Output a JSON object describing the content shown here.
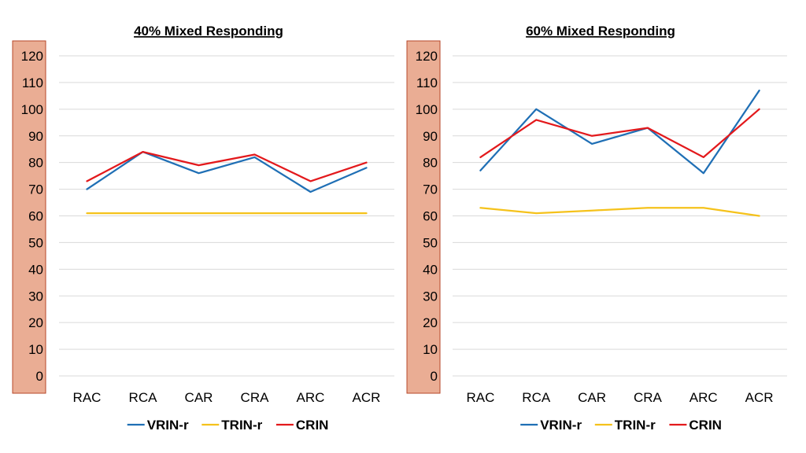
{
  "chart_data": [
    {
      "type": "line",
      "title": "40% Mixed Responding",
      "categories": [
        "RAC",
        "RCA",
        "CAR",
        "CRA",
        "ARC",
        "ACR"
      ],
      "ylim": [
        0,
        120
      ],
      "yticks": [
        0,
        10,
        20,
        30,
        40,
        50,
        60,
        70,
        80,
        90,
        100,
        110,
        120
      ],
      "grid": true,
      "legend": "bottom",
      "series": [
        {
          "name": "VRIN-r",
          "color": "#1f6fb5",
          "values": [
            70,
            84,
            76,
            82,
            69,
            78
          ]
        },
        {
          "name": "TRIN-r",
          "color": "#f5c21b",
          "values": [
            61,
            61,
            61,
            61,
            61,
            61
          ]
        },
        {
          "name": "CRIN",
          "color": "#e3191c",
          "values": [
            73,
            84,
            79,
            83,
            73,
            80
          ]
        }
      ]
    },
    {
      "type": "line",
      "title": "60% Mixed Responding",
      "categories": [
        "RAC",
        "RCA",
        "CAR",
        "CRA",
        "ARC",
        "ACR"
      ],
      "ylim": [
        0,
        120
      ],
      "yticks": [
        0,
        10,
        20,
        30,
        40,
        50,
        60,
        70,
        80,
        90,
        100,
        110,
        120
      ],
      "grid": true,
      "legend": "bottom",
      "series": [
        {
          "name": "VRIN-r",
          "color": "#1f6fb5",
          "values": [
            77,
            100,
            87,
            93,
            76,
            107
          ]
        },
        {
          "name": "TRIN-r",
          "color": "#f5c21b",
          "values": [
            63,
            61,
            62,
            63,
            63,
            60
          ]
        },
        {
          "name": "CRIN",
          "color": "#e3191c",
          "values": [
            82,
            96,
            90,
            93,
            82,
            100
          ]
        }
      ]
    }
  ],
  "style": {
    "axis_box_fill": "#eaad94",
    "axis_box_stroke": "#b7472a",
    "grid_color": "#d9d9d9"
  }
}
